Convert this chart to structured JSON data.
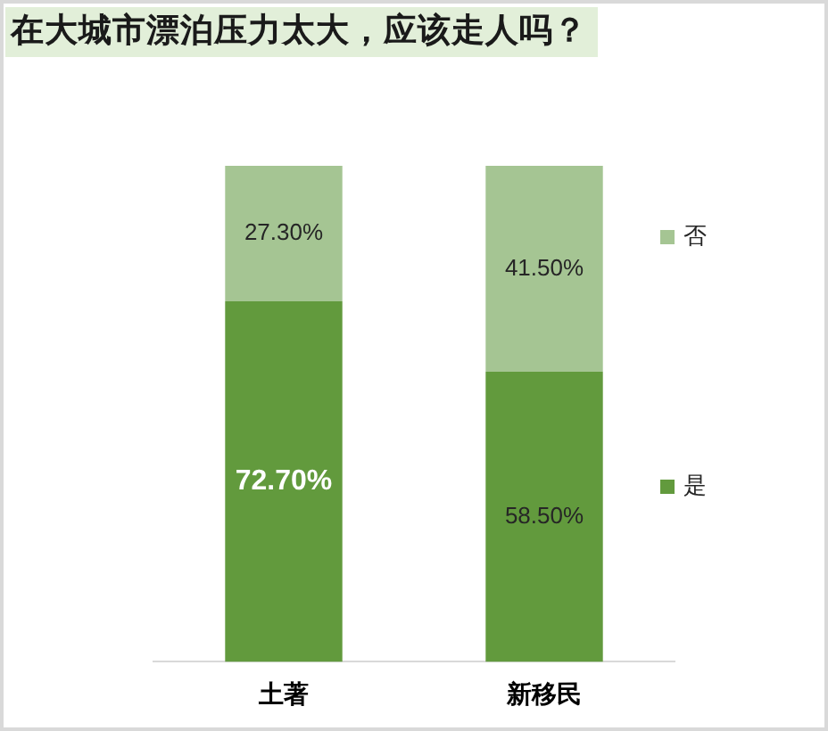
{
  "chart_data": {
    "type": "bar",
    "title": "在大城市漂泊压力太大，应该走人吗？",
    "categories": [
      "土著",
      "新移民"
    ],
    "stacked": true,
    "legend": "right",
    "grid": false,
    "series": [
      {
        "name": "是",
        "color": "#629a3d",
        "values": [
          72.7,
          58.5
        ],
        "value_labels": [
          "72.70%",
          "58.50%"
        ]
      },
      {
        "name": "否",
        "color": "#a5c593",
        "values": [
          27.3,
          41.5
        ],
        "value_labels": [
          "27.30%",
          "41.50%"
        ]
      }
    ]
  }
}
